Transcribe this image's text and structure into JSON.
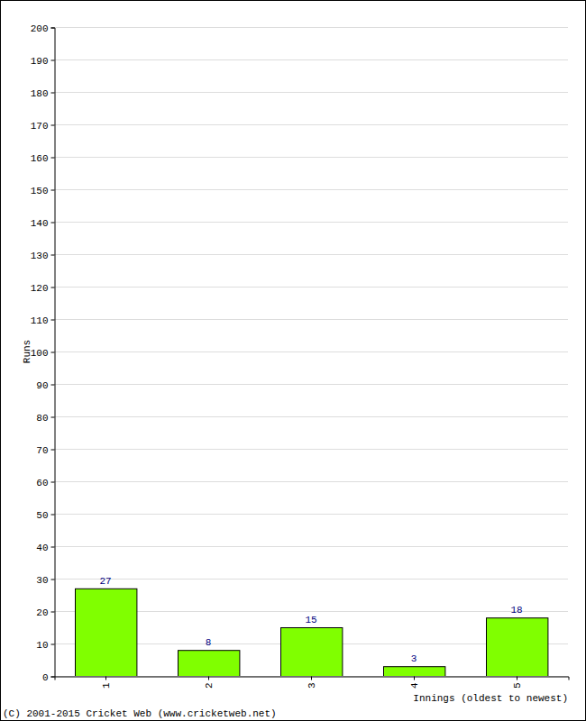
{
  "chart_data": {
    "type": "bar",
    "y_label": "Runs",
    "x_label": "Innings (oldest to newest)",
    "source": "(C) 2001-2015 Cricket Web (www.cricketweb.net)",
    "categories": [
      "1",
      "2",
      "3",
      "4",
      "5"
    ],
    "values": [
      27,
      8,
      15,
      3,
      18
    ],
    "color": "#80ff00",
    "ylim": [
      0,
      200
    ],
    "yticks": [
      0,
      10,
      20,
      30,
      40,
      50,
      60,
      70,
      80,
      90,
      100,
      110,
      120,
      130,
      140,
      150,
      160,
      170,
      180,
      190,
      200
    ],
    "grid": true,
    "data_labels": true
  }
}
